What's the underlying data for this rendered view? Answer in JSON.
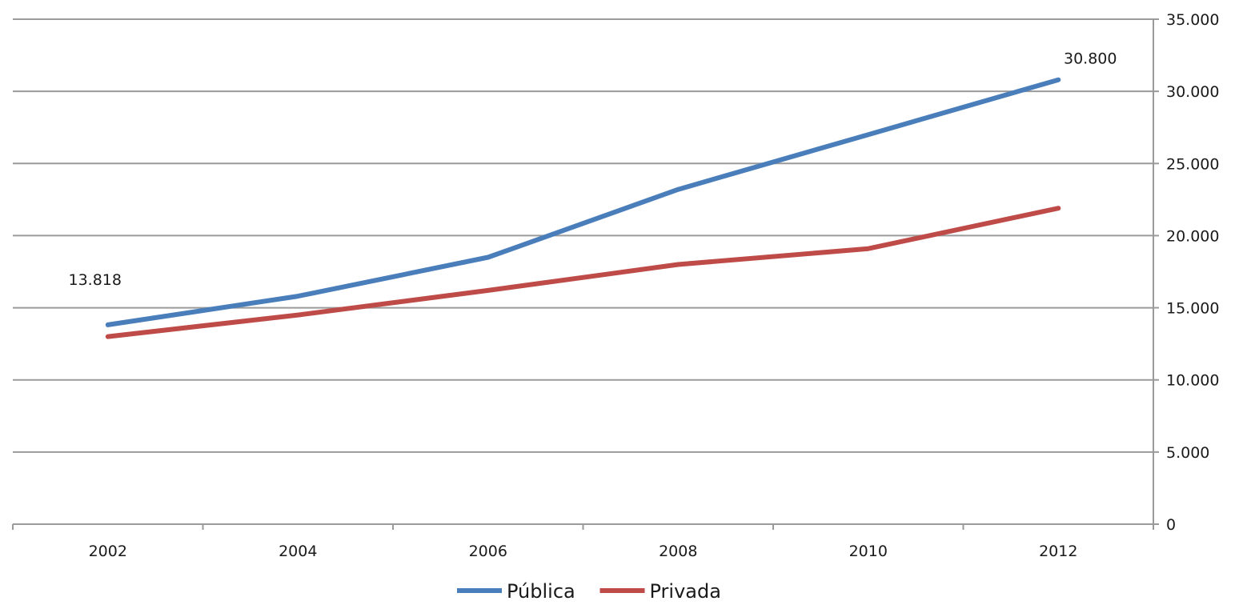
{
  "chart_data": {
    "type": "line",
    "title": "",
    "xlabel": "",
    "ylabel": "",
    "categories": [
      "2002",
      "2004",
      "2006",
      "2008",
      "2010",
      "2012"
    ],
    "series": [
      {
        "name": "Pública",
        "color": "#4a7ebb",
        "values": [
          13818,
          15800,
          18500,
          23200,
          27000,
          30800
        ]
      },
      {
        "name": "Privada",
        "color": "#be4b48",
        "values": [
          13000,
          14500,
          16200,
          18000,
          19100,
          21900
        ]
      }
    ],
    "ylim": [
      0,
      35000
    ],
    "yticks": [
      0,
      5000,
      10000,
      15000,
      20000,
      25000,
      30000,
      35000
    ],
    "ytick_labels": [
      "0",
      "5.000",
      "10.000",
      "15.000",
      "20.000",
      "25.000",
      "30.000",
      "35.000"
    ],
    "y_axis_side": "right",
    "grid": true,
    "legend_position": "bottom",
    "data_labels": [
      {
        "series": "Pública",
        "category": "2002",
        "text": "13.818"
      },
      {
        "series": "Pública",
        "category": "2012",
        "text": "30.800"
      }
    ]
  }
}
